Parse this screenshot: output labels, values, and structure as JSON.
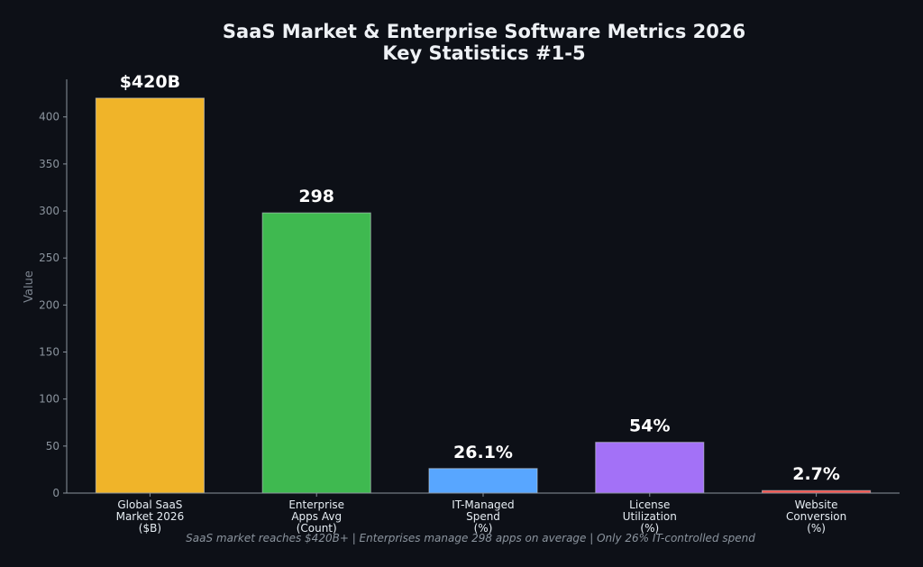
{
  "chart_data": {
    "type": "bar",
    "title_line1": "SaaS Market & Enterprise Software Metrics 2026",
    "title_line2": "Key Statistics #1-5",
    "ylabel": "Value",
    "ylim": [
      0,
      440
    ],
    "yticks": [
      0,
      50,
      100,
      150,
      200,
      250,
      300,
      350,
      400
    ],
    "categories": [
      [
        "Global SaaS",
        "Market 2026",
        "($B)"
      ],
      [
        "Enterprise",
        "Apps Avg",
        "(Count)"
      ],
      [
        "IT-Managed",
        "Spend",
        "(%)"
      ],
      [
        "License",
        "Utilization",
        "(%)"
      ],
      [
        "Website",
        "Conversion",
        "(%)"
      ]
    ],
    "values": [
      420,
      298,
      26.1,
      54,
      2.7
    ],
    "value_labels": [
      "$420B",
      "298",
      "26.1%",
      "54%",
      "2.7%"
    ],
    "colors": [
      "#f0b429",
      "#3fb950",
      "#58a6ff",
      "#a371f7",
      "#f85149"
    ],
    "footnote": "SaaS market reaches $420B+ | Enterprises manage 298 apps on average | Only 26% IT-controlled spend"
  }
}
